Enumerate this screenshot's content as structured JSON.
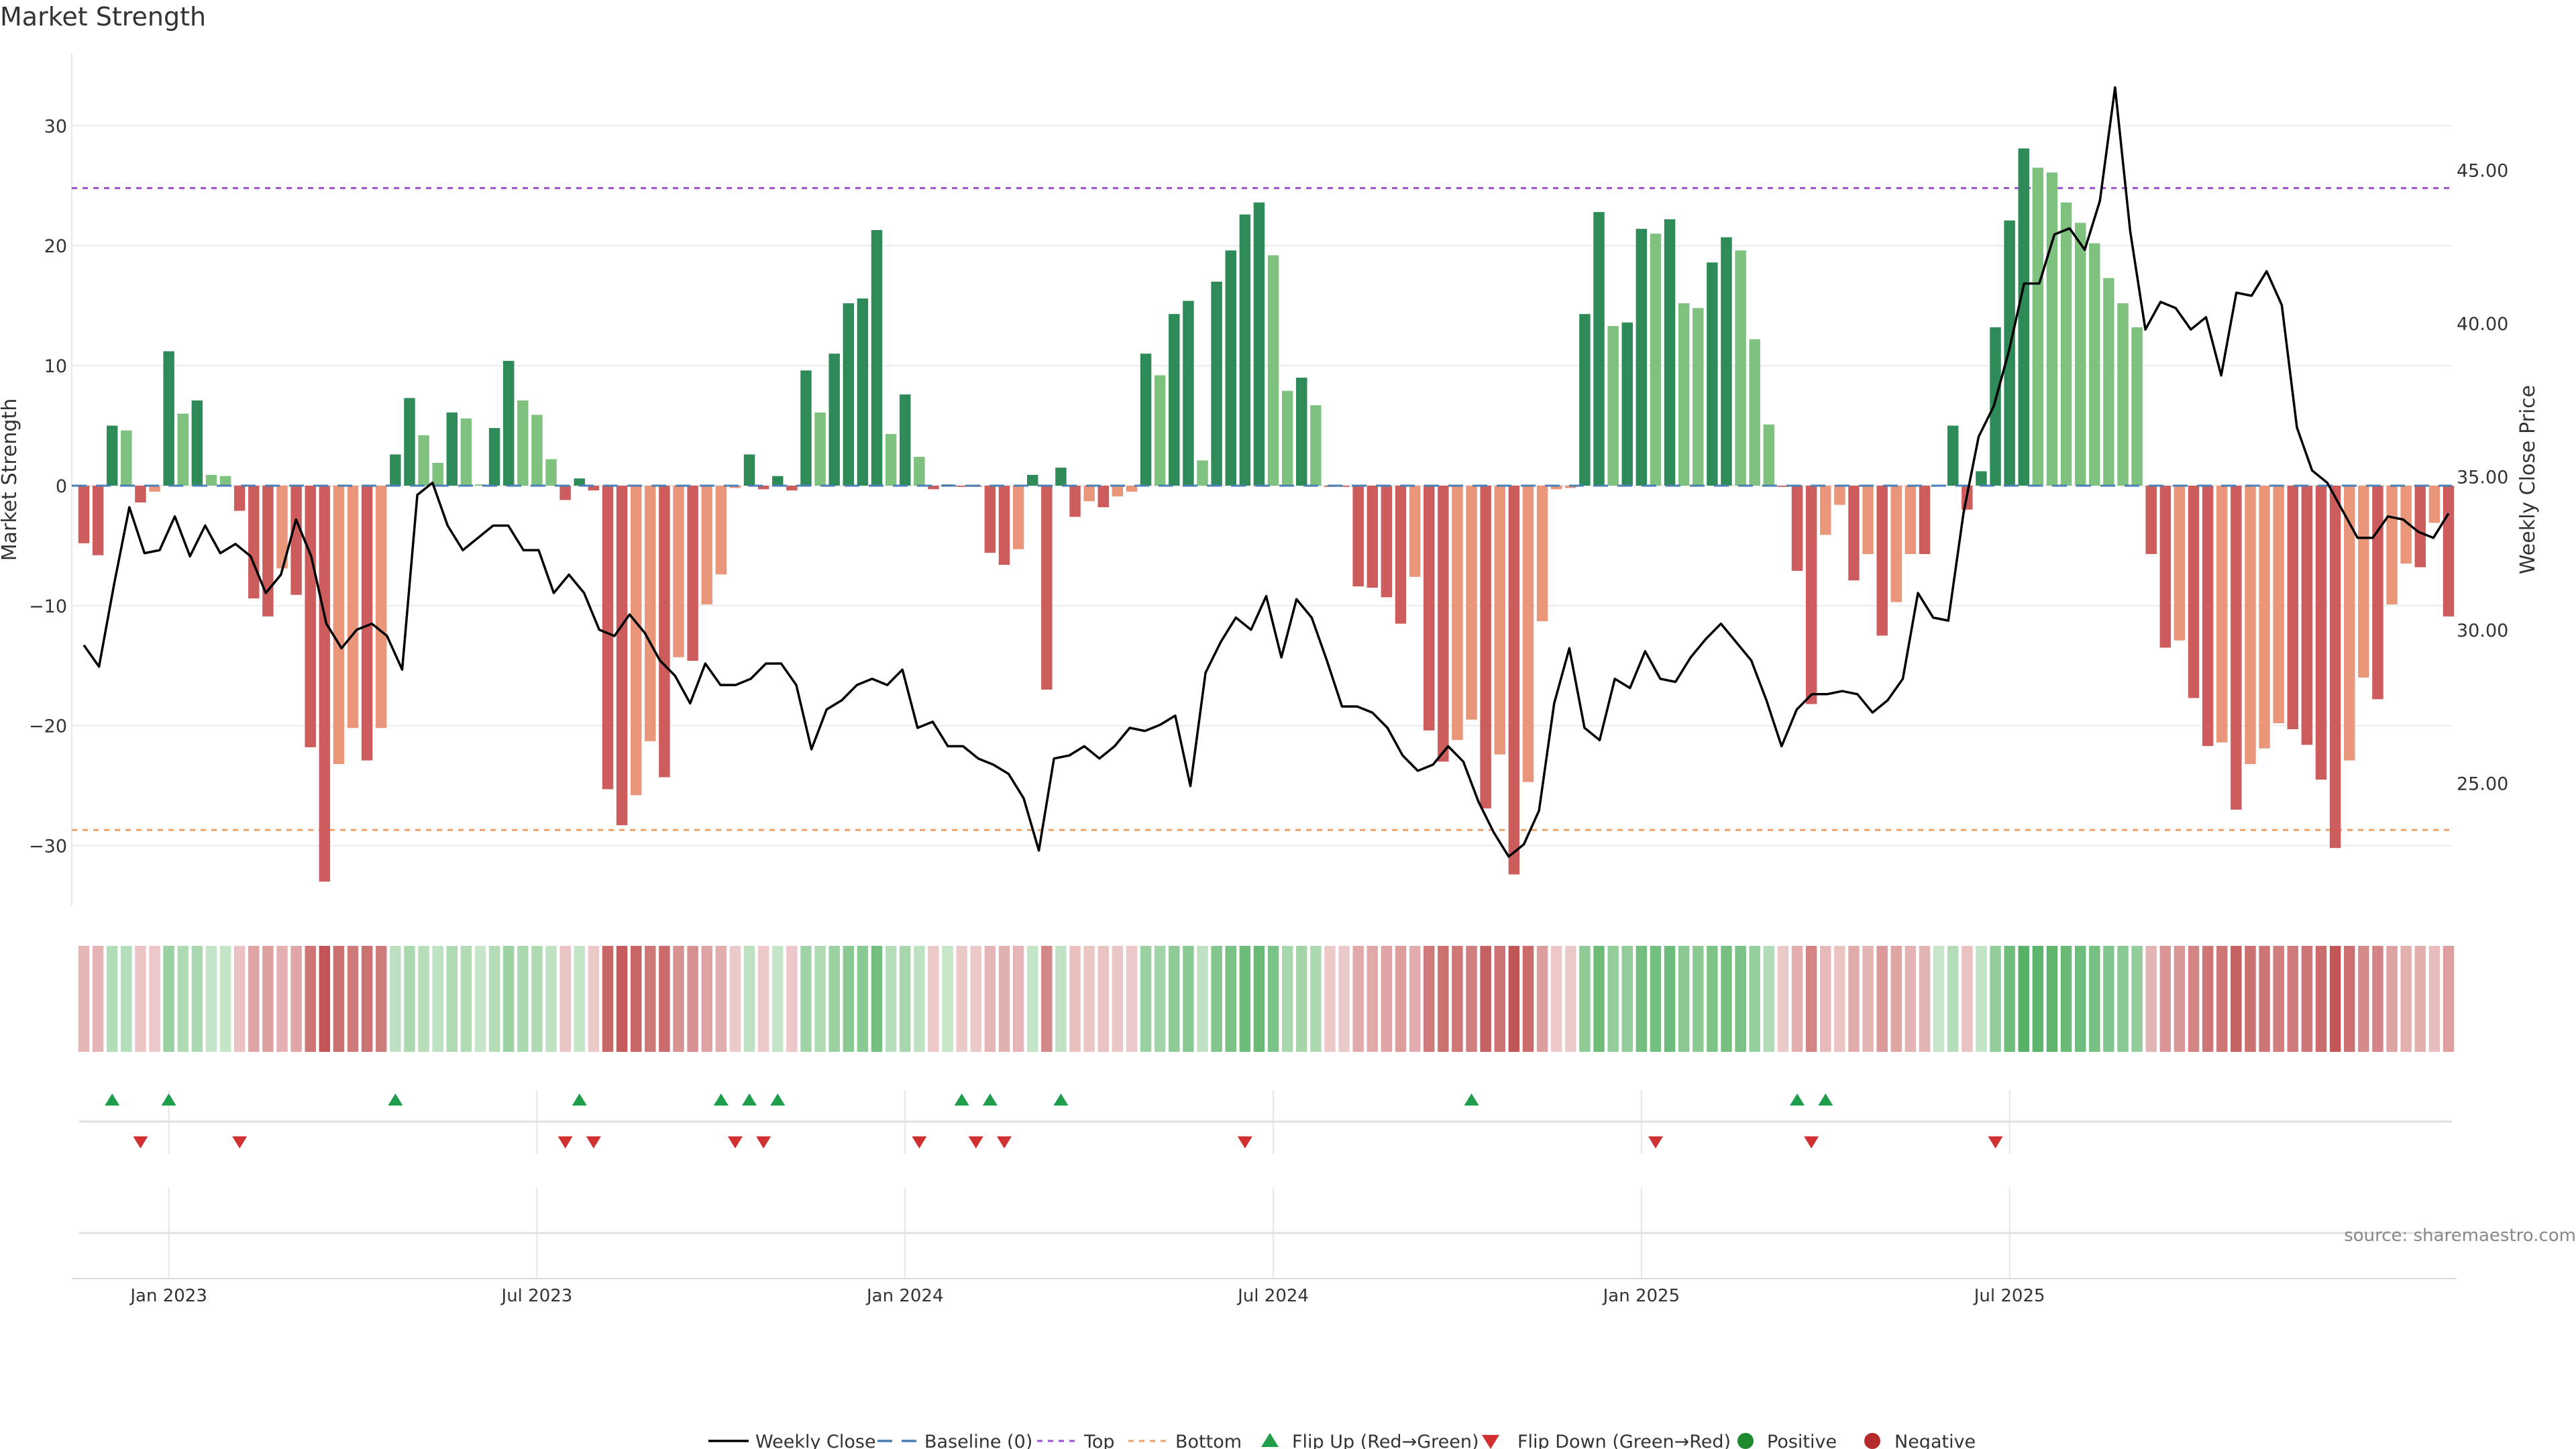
{
  "title": "Market Strength",
  "source_text": "source: sharemaestro.com",
  "colors": {
    "weekly_close": "#000000",
    "baseline": "#4a7fb5",
    "top": "#9d4edd",
    "bottom": "#f0a06a",
    "flip_up": "#1e9e4a",
    "flip_down": "#d03030",
    "positive": "#1e8a2e",
    "negative": "#b52a2a",
    "bar_green_dark": "#2e8b57",
    "bar_green_light": "#7fc17f",
    "bar_red_dark": "#cd5c5c",
    "bar_red_light": "#e9967a"
  },
  "chart_data": {
    "type": "bar+line",
    "title": "Market Strength",
    "x_ticks": [
      "Jan 2023",
      "Jul 2023",
      "Jan 2024",
      "Jul 2024",
      "Jan 2025",
      "Jul 2025"
    ],
    "left_axis": {
      "label": "Market Strength",
      "ylim": [
        -35,
        36
      ],
      "ticks": [
        "30",
        "20",
        "10",
        "0",
        "−10",
        "−20",
        "−30"
      ],
      "tick_values": [
        30,
        20,
        10,
        0,
        -10,
        -20,
        -30
      ]
    },
    "right_axis": {
      "label": "Weekly Close Price",
      "ylim": [
        21.0,
        48.8
      ],
      "ticks": [
        "45.00",
        "40.00",
        "35.00",
        "30.00",
        "25.00"
      ],
      "tick_values": [
        45,
        40,
        35,
        30,
        25
      ]
    },
    "reference_lines": {
      "baseline": 0,
      "top": 24.8,
      "bottom": -28.7
    },
    "strength": [
      -4.8,
      -5.8,
      5,
      4.6,
      -1.4,
      -0.5,
      11.2,
      6,
      7.1,
      0.9,
      0.8,
      -2.1,
      -9.4,
      -10.9,
      -6.9,
      -9.1,
      -21.8,
      -33,
      -23.2,
      -20.2,
      -22.9,
      -20.2,
      2.6,
      7.3,
      4.2,
      1.9,
      6.1,
      5.6,
      0.1,
      4.8,
      10.4,
      7.1,
      5.9,
      2.2,
      -1.2,
      0.6,
      -0.4,
      -25.3,
      -28.3,
      -25.8,
      -21.3,
      -24.3,
      -14.3,
      -14.6,
      -9.9,
      -7.4,
      -0.2,
      2.6,
      -0.3,
      0.8,
      -0.4,
      9.6,
      6.1,
      11,
      15.2,
      15.6,
      21.3,
      4.3,
      7.6,
      2.4,
      -0.3,
      0.1,
      -0.1,
      -0.1,
      -5.6,
      -6.6,
      -5.3,
      0.9,
      -17,
      1.5,
      -2.6,
      -1.3,
      -1.8,
      -0.9,
      -0.5,
      11,
      9.2,
      14.3,
      15.4,
      2.1,
      17,
      19.6,
      22.6,
      23.6,
      19.2,
      7.9,
      9,
      6.7,
      -0.1,
      -0.1,
      -8.4,
      -8.5,
      -9.3,
      -11.5,
      -7.6,
      -20.4,
      -23,
      -21.2,
      -19.5,
      -26.9,
      -22.4,
      -32.4,
      -24.7,
      -11.3,
      -0.3,
      -0.2,
      14.3,
      22.8,
      13.3,
      13.6,
      21.4,
      21,
      22.2,
      15.2,
      14.8,
      18.6,
      20.7,
      19.6,
      12.2,
      5.1,
      -0.1,
      -7.1,
      -18.2,
      -4.1,
      -1.6,
      -7.9,
      -5.7,
      -12.5,
      -9.7,
      -5.7,
      -5.7,
      0,
      5,
      -2,
      1.2,
      13.2,
      22.1,
      28.1,
      26.5,
      26.1,
      23.6,
      21.9,
      20.2,
      17.3,
      15.2,
      13.2,
      -5.7,
      -13.5,
      -12.9,
      -17.7,
      -21.7,
      -21.4,
      -27,
      -23.2,
      -21.9,
      -19.8,
      -20.3,
      -21.6,
      -24.5,
      -30.2,
      -22.9,
      -16,
      -17.8,
      -9.9,
      -6.5,
      -6.8,
      -3.1,
      -10.9
    ],
    "flip_up_weeks": [
      2,
      6,
      22,
      35,
      45,
      47,
      49,
      62,
      64,
      69,
      98,
      121,
      123
    ],
    "flip_down_weeks": [
      4,
      11,
      34,
      36,
      46,
      48,
      59,
      63,
      65,
      82,
      111,
      122,
      135
    ],
    "price_keyframes": [
      [
        0,
        29.5
      ],
      [
        1,
        28.8
      ],
      [
        2,
        31.5
      ],
      [
        3,
        34
      ],
      [
        4,
        32.5
      ],
      [
        5,
        32.6
      ],
      [
        6,
        33.7
      ],
      [
        7,
        32.4
      ],
      [
        8,
        33.4
      ],
      [
        9,
        32.5
      ],
      [
        10,
        32.8
      ],
      [
        11,
        32.4
      ],
      [
        12,
        31.2
      ],
      [
        13,
        31.8
      ],
      [
        14,
        33.6
      ],
      [
        15,
        32.4
      ],
      [
        16,
        30.2
      ],
      [
        17,
        29.4
      ],
      [
        18,
        30
      ],
      [
        19,
        30.2
      ],
      [
        20,
        29.8
      ],
      [
        21,
        28.7
      ],
      [
        22,
        34.4
      ],
      [
        23,
        34.8
      ],
      [
        24,
        33.4
      ],
      [
        25,
        32.6
      ],
      [
        26,
        33
      ],
      [
        27,
        33.4
      ],
      [
        28,
        33.4
      ],
      [
        29,
        32.6
      ],
      [
        30,
        32.6
      ],
      [
        31,
        31.2
      ],
      [
        32,
        31.8
      ],
      [
        33,
        31.2
      ],
      [
        34,
        30
      ],
      [
        35,
        29.8
      ],
      [
        36,
        30.5
      ],
      [
        37,
        29.9
      ],
      [
        38,
        29
      ],
      [
        39,
        28.5
      ],
      [
        40,
        27.6
      ],
      [
        41,
        28.9
      ],
      [
        42,
        28.2
      ],
      [
        43,
        28.2
      ],
      [
        44,
        28.4
      ],
      [
        45,
        28.9
      ],
      [
        46,
        28.9
      ],
      [
        47,
        28.2
      ],
      [
        48,
        26.1
      ],
      [
        49,
        27.4
      ],
      [
        50,
        27.7
      ],
      [
        51,
        28.2
      ],
      [
        52,
        28.4
      ],
      [
        53,
        28.2
      ],
      [
        54,
        28.7
      ],
      [
        55,
        26.8
      ],
      [
        56,
        27
      ],
      [
        57,
        26.2
      ],
      [
        58,
        26.2
      ],
      [
        59,
        25.8
      ],
      [
        60,
        25.6
      ],
      [
        61,
        25.3
      ],
      [
        62,
        24.5
      ],
      [
        63,
        22.8
      ],
      [
        64,
        25.8
      ],
      [
        65,
        25.9
      ],
      [
        66,
        26.2
      ],
      [
        67,
        25.8
      ],
      [
        68,
        26.2
      ],
      [
        69,
        26.8
      ],
      [
        70,
        26.7
      ],
      [
        71,
        26.9
      ],
      [
        72,
        27.2
      ],
      [
        73,
        24.9
      ],
      [
        74,
        28.6
      ],
      [
        75,
        29.6
      ],
      [
        76,
        30.4
      ],
      [
        77,
        30
      ],
      [
        78,
        31.1
      ],
      [
        79,
        29.1
      ],
      [
        80,
        31
      ],
      [
        81,
        30.4
      ],
      [
        82,
        29
      ],
      [
        83,
        27.5
      ],
      [
        84,
        27.5
      ],
      [
        85,
        27.3
      ],
      [
        86,
        26.8
      ],
      [
        87,
        25.9
      ],
      [
        88,
        25.4
      ],
      [
        89,
        25.6
      ],
      [
        90,
        26.2
      ],
      [
        91,
        25.7
      ],
      [
        92,
        24.4
      ],
      [
        93,
        23.4
      ],
      [
        94,
        22.6
      ],
      [
        95,
        23
      ],
      [
        96,
        24.1
      ],
      [
        97,
        27.6
      ],
      [
        98,
        29.4
      ],
      [
        99,
        26.8
      ],
      [
        100,
        26.4
      ],
      [
        101,
        28.4
      ],
      [
        102,
        28.1
      ],
      [
        103,
        29.3
      ],
      [
        104,
        28.4
      ],
      [
        105,
        28.3
      ],
      [
        106,
        29.1
      ],
      [
        107,
        29.7
      ],
      [
        108,
        30.2
      ],
      [
        109,
        29.6
      ],
      [
        110,
        29
      ],
      [
        111,
        27.7
      ],
      [
        112,
        26.2
      ],
      [
        113,
        27.4
      ],
      [
        114,
        27.9
      ],
      [
        115,
        27.9
      ],
      [
        116,
        28
      ],
      [
        117,
        27.9
      ],
      [
        118,
        27.3
      ],
      [
        119,
        27.7
      ],
      [
        120,
        28.4
      ],
      [
        121,
        31.2
      ],
      [
        122,
        30.4
      ],
      [
        123,
        30.3
      ],
      [
        124,
        33.8
      ],
      [
        125,
        36.3
      ],
      [
        126,
        37.3
      ],
      [
        127,
        39.1
      ],
      [
        128,
        41.3
      ],
      [
        129,
        41.3
      ],
      [
        130,
        42.9
      ],
      [
        131,
        43.1
      ],
      [
        132,
        42.4
      ],
      [
        133,
        44
      ],
      [
        134,
        47.7
      ],
      [
        135,
        43
      ],
      [
        136,
        39.8
      ],
      [
        137,
        40.7
      ],
      [
        138,
        40.5
      ],
      [
        139,
        39.8
      ],
      [
        140,
        40.2
      ],
      [
        141,
        38.3
      ],
      [
        142,
        41
      ],
      [
        143,
        40.9
      ],
      [
        144,
        41.7
      ],
      [
        145,
        40.6
      ],
      [
        146,
        36.6
      ],
      [
        147,
        35.2
      ],
      [
        148,
        34.8
      ],
      [
        149,
        33.9
      ],
      [
        150,
        33
      ],
      [
        151,
        33
      ],
      [
        152,
        33.7
      ],
      [
        153,
        33.6
      ],
      [
        154,
        33.2
      ],
      [
        155,
        33
      ],
      [
        156,
        33.8
      ]
    ]
  }
}
